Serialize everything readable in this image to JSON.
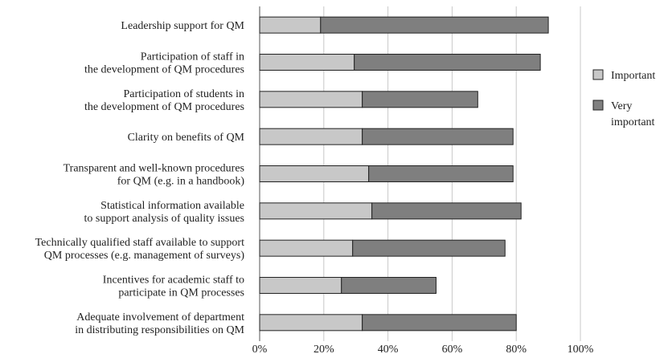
{
  "chart_data": {
    "type": "bar",
    "orientation": "horizontal",
    "stacked": true,
    "title": "",
    "xlabel": "",
    "ylabel": "",
    "xlim": [
      0,
      100
    ],
    "grid": true,
    "legend_position": "right",
    "categories": [
      "Leadership support for QM",
      "Participation of staff in\nthe development of QM procedures",
      "Participation of students in\nthe development of QM procedures",
      "Clarity on benefits of QM",
      "Transparent and well-known procedures\nfor QM (e.g. in a handbook)",
      "Statistical information available\nto support analysis of quality issues",
      "Technically qualified staff available to support\nQM processes (e.g. management of surveys)",
      "Incentives for academic staff to\nparticipate in QM processes",
      "Adequate involvement of department\nin distributing responsibilities on QM"
    ],
    "series": [
      {
        "name": "Important",
        "color": "#c8c8c8",
        "values": [
          19,
          29.5,
          32,
          32,
          34,
          35,
          29,
          25.5,
          32
        ]
      },
      {
        "name": "Very\nimportant",
        "color": "#7f7f7f",
        "values": [
          71,
          58,
          36,
          47,
          45,
          46.5,
          47.5,
          29.5,
          48
        ]
      }
    ],
    "tick_labels": [
      "0%",
      "20%",
      "40%",
      "60%",
      "80%",
      "100%"
    ]
  }
}
